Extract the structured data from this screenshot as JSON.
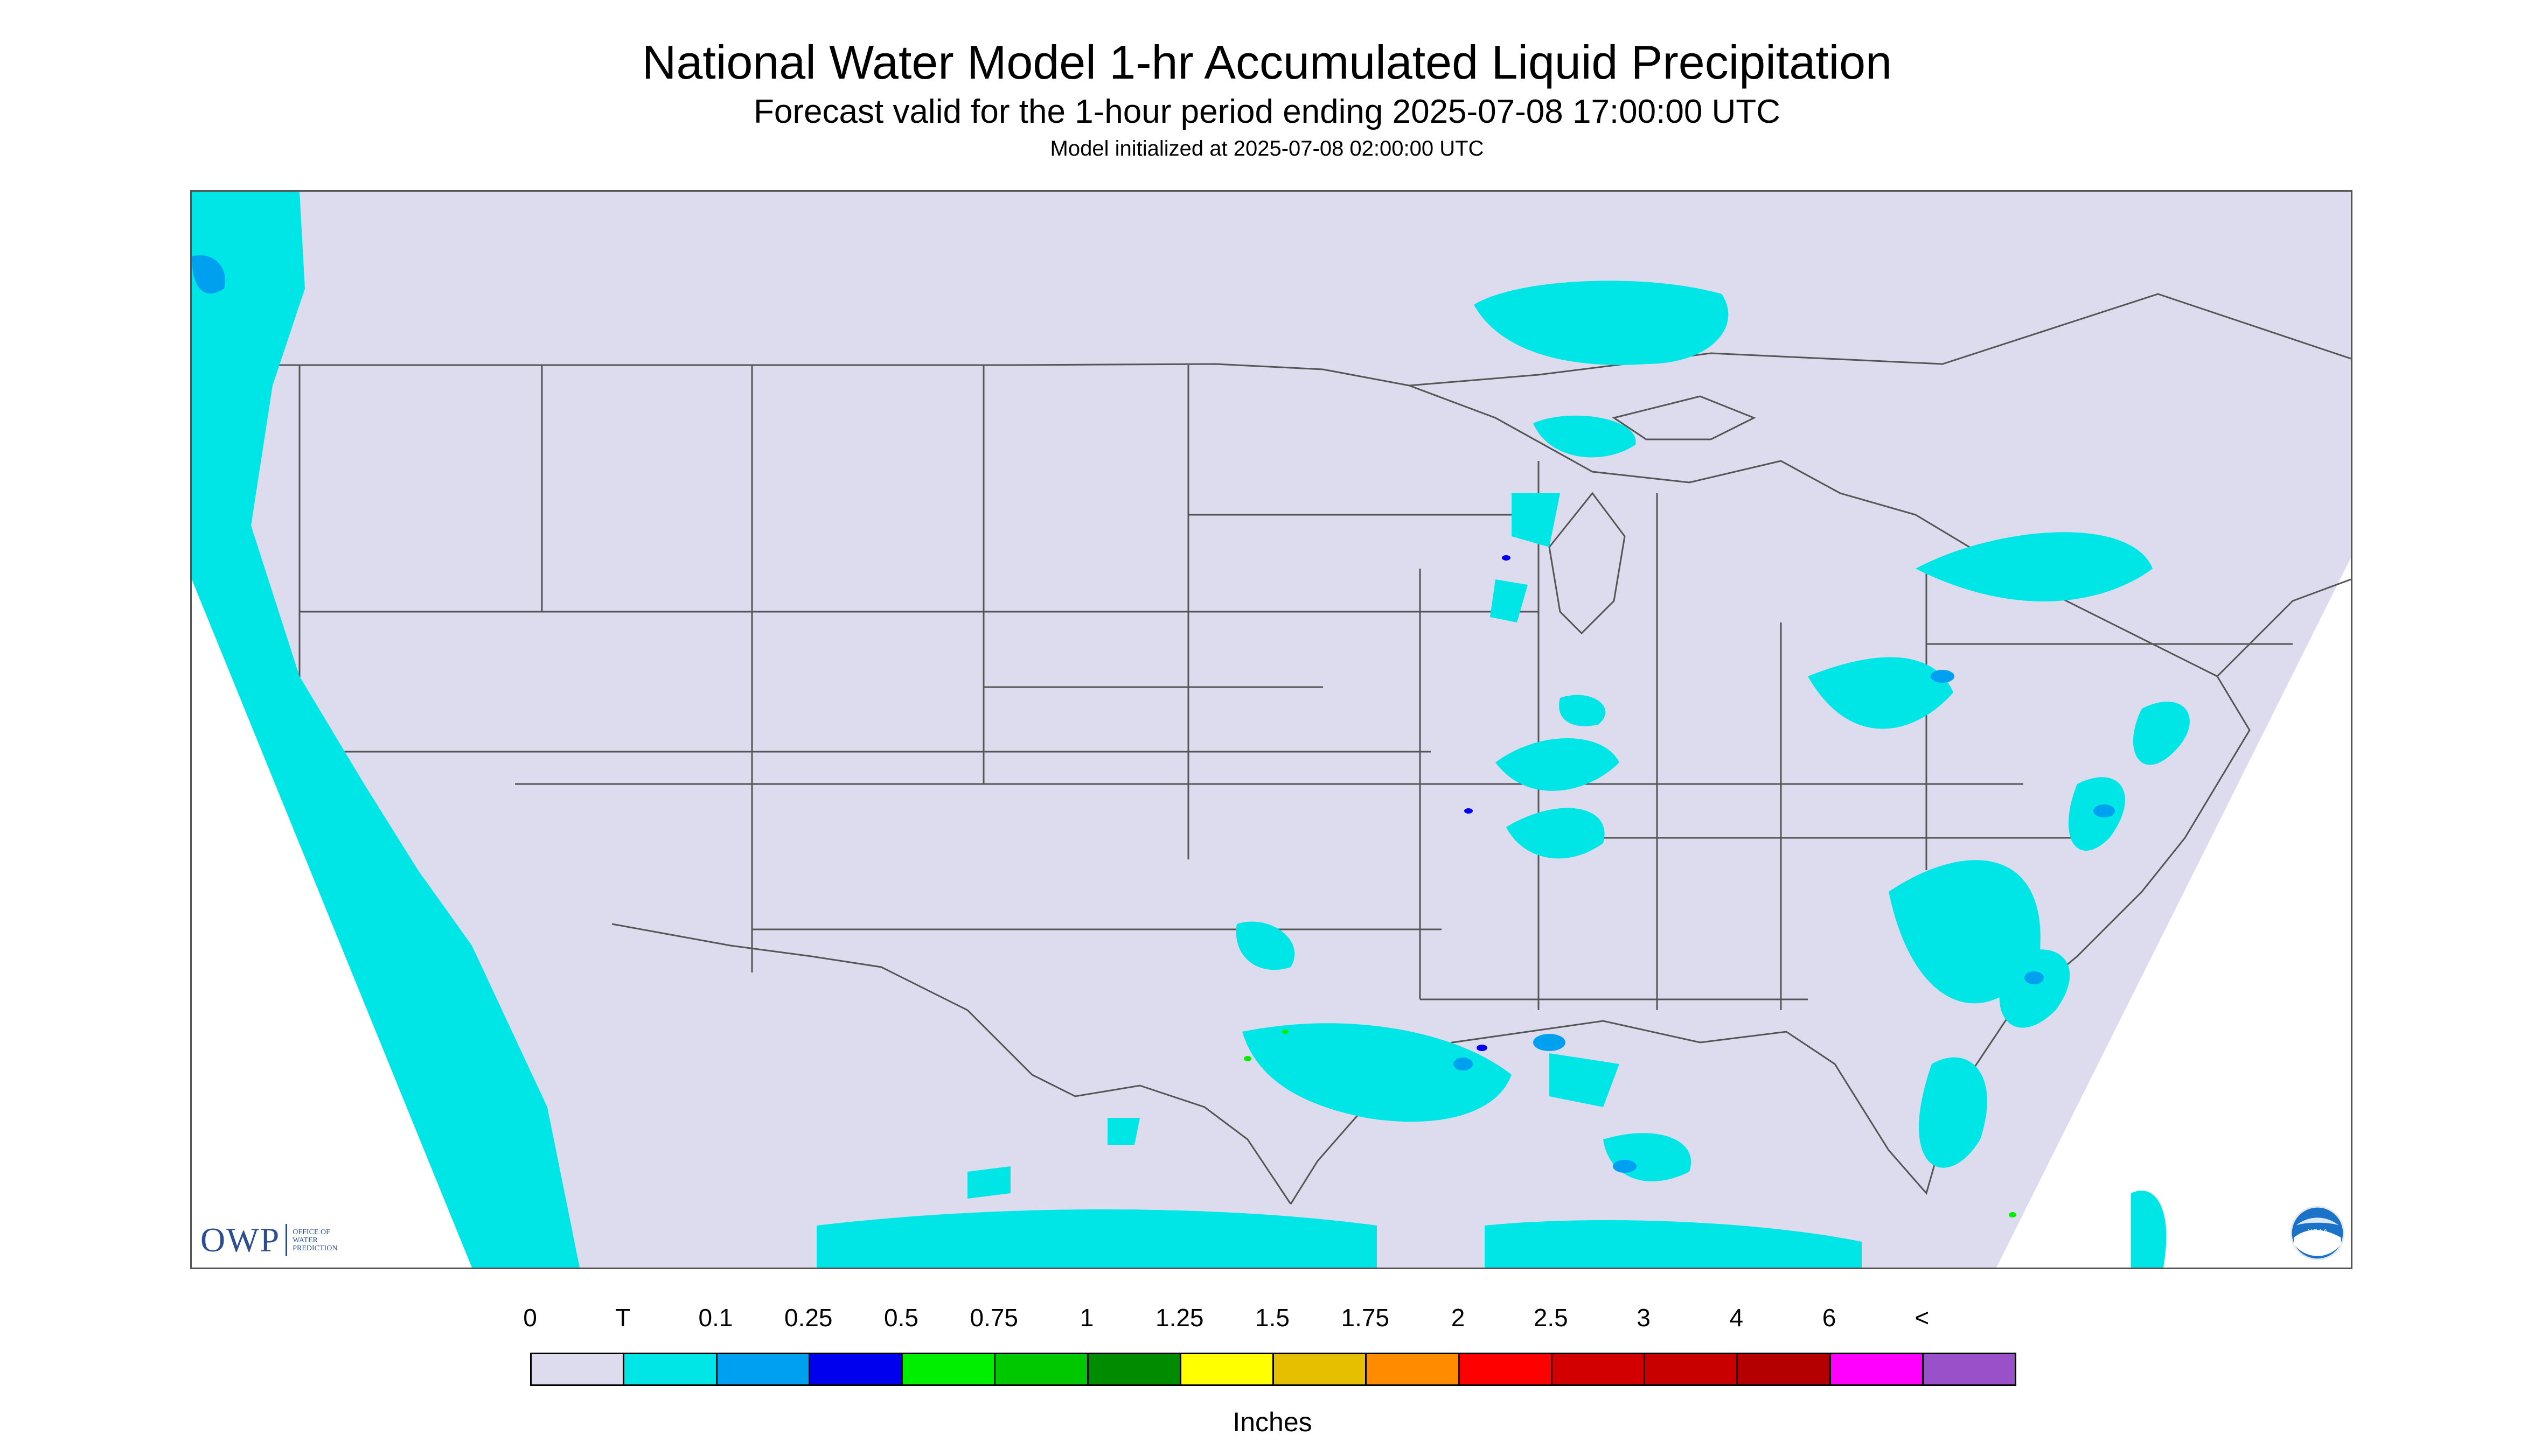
{
  "title": "National Water Model 1-hr Accumulated Liquid Precipitation",
  "subtitle": "Forecast valid for the 1-hour period ending 2025-07-08 17:00:00 UTC",
  "init_line": "Model initialized at 2025-07-08 02:00:00 UTC",
  "map": {
    "region": "Continental United States",
    "background_color": "#dcdcee",
    "boundary_color": "#555555",
    "precip_colors": {
      "trace": "#00e5e5",
      "light": "#00a0f0",
      "moderate": "#0000ee",
      "heavy": "#00ee00"
    }
  },
  "logos": {
    "owp_text": "OWP",
    "owp_sub": [
      "Office of",
      "Water",
      "Prediction"
    ],
    "noaa_text": "NOAA"
  },
  "legend": {
    "tick_labels": [
      "0",
      "T",
      "0.1",
      "0.25",
      "0.5",
      "0.75",
      "1",
      "1.25",
      "1.5",
      "1.75",
      "2",
      "2.5",
      "3",
      "4",
      "6",
      "<"
    ],
    "colors": [
      "#dcdcee",
      "#00e5e5",
      "#00a0f0",
      "#0000ee",
      "#00ee00",
      "#00c800",
      "#008c00",
      "#ffff00",
      "#e6c000",
      "#ff8c00",
      "#ff0000",
      "#d20000",
      "#c80000",
      "#b40000",
      "#ff00ff",
      "#9a50c8"
    ],
    "units": "Inches"
  }
}
